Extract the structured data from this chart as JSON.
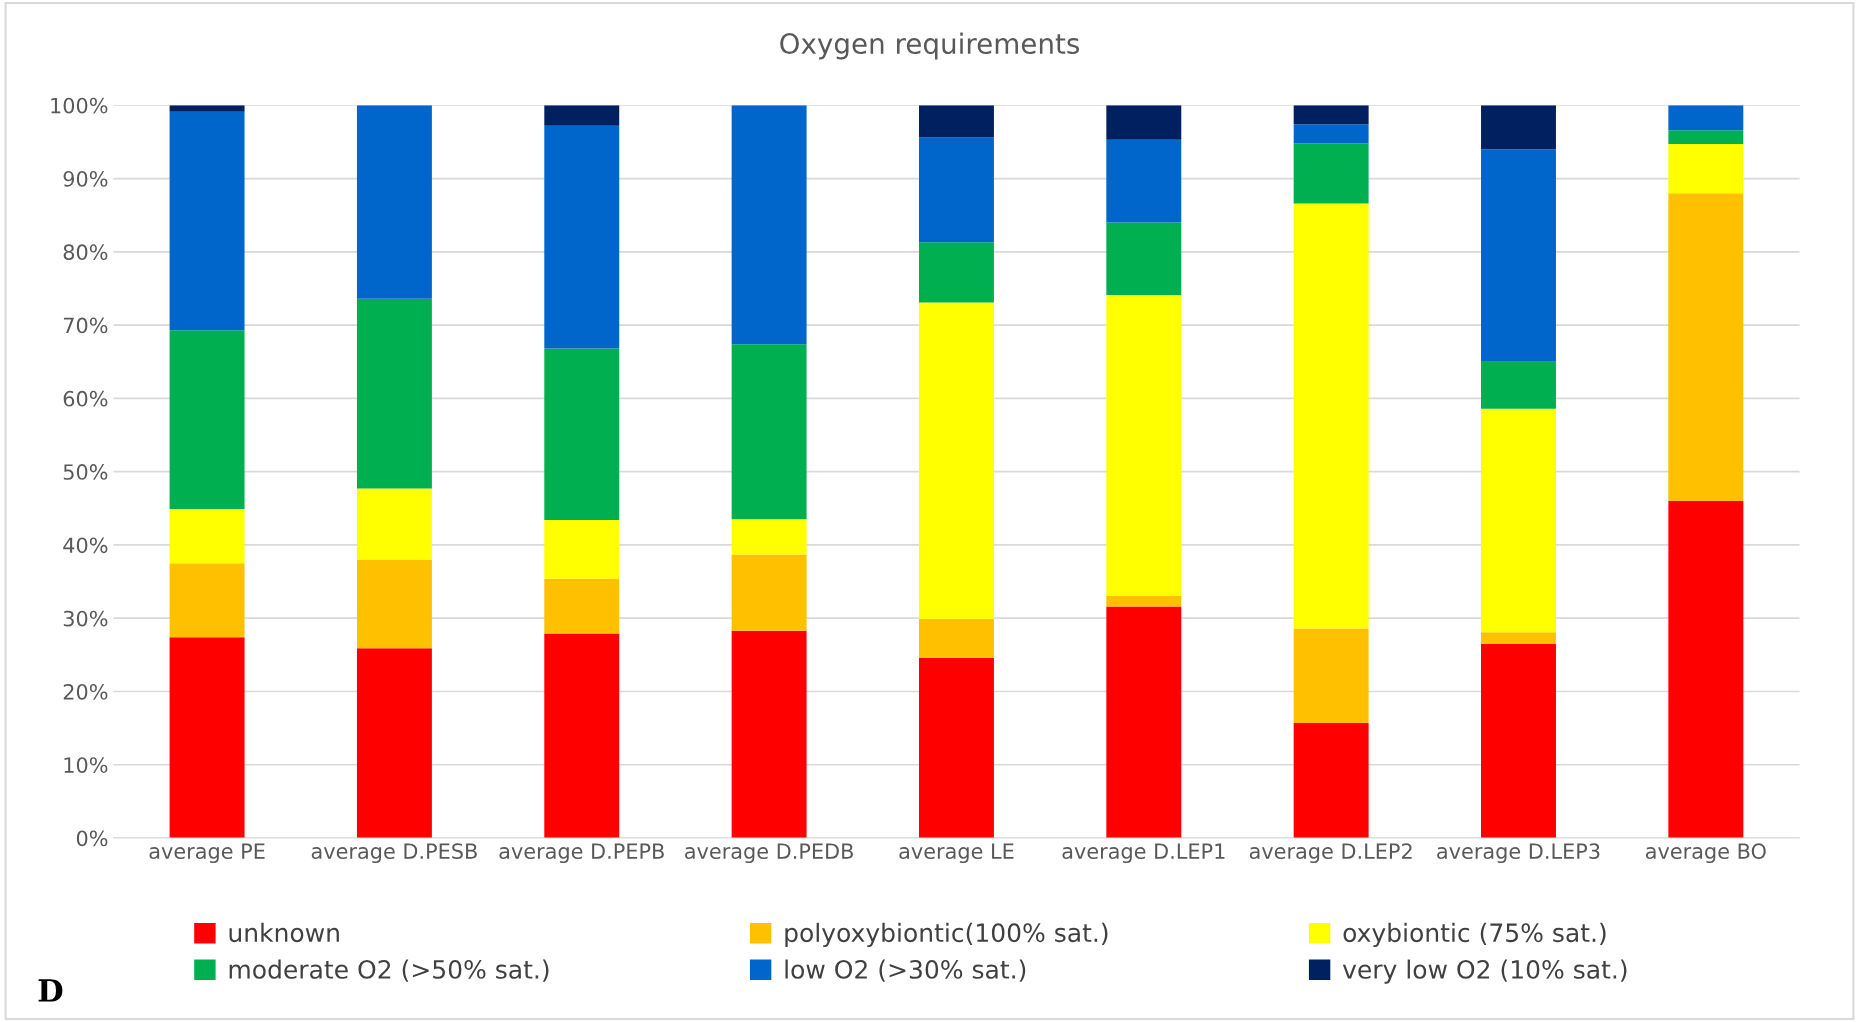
{
  "chart_data": {
    "type": "bar",
    "title": "Oxygen requirements",
    "stacked": true,
    "categories": [
      "average PE",
      "average D.PESB",
      "average D.PEPB",
      "average D.PEDB",
      "average LE",
      "average D.LEP1",
      "average D.LEP2",
      "average D.LEP3",
      "average BO"
    ],
    "series": [
      {
        "name": "unknown",
        "color": "#ff0000",
        "values": [
          27.4,
          25.9,
          27.9,
          28.3,
          24.6,
          31.6,
          15.7,
          26.5,
          46.0
        ]
      },
      {
        "name": "polyoxybiontic(100% sat.)",
        "color": "#ffc000",
        "values": [
          10.1,
          12.1,
          7.5,
          10.4,
          5.3,
          1.5,
          12.9,
          1.6,
          42.0
        ]
      },
      {
        "name": "oxybiontic (75% sat.)",
        "color": "#ffff00",
        "values": [
          7.4,
          9.7,
          8.0,
          4.8,
          43.2,
          41.0,
          58.0,
          30.5,
          6.7
        ]
      },
      {
        "name": "moderate O2 (>50% sat.)",
        "color": "#00b050",
        "values": [
          24.4,
          25.9,
          23.4,
          23.9,
          8.2,
          9.9,
          8.2,
          6.4,
          1.9
        ]
      },
      {
        "name": "low O2 (>30% sat.)",
        "color": "#0066cc",
        "values": [
          29.8,
          26.4,
          30.4,
          32.6,
          14.3,
          11.3,
          2.6,
          29.0,
          3.4
        ]
      },
      {
        "name": "very low O2 (10% sat.)",
        "color": "#002060",
        "values": [
          0.9,
          0,
          2.8,
          0,
          4.4,
          4.7,
          2.6,
          6.0,
          0
        ]
      }
    ],
    "ylim": [
      0,
      100
    ],
    "yticks": [
      {
        "value": 0,
        "label": "0%"
      },
      {
        "value": 10,
        "label": "10%"
      },
      {
        "value": 20,
        "label": "20%"
      },
      {
        "value": 30,
        "label": "30%"
      },
      {
        "value": 40,
        "label": "40%"
      },
      {
        "value": 50,
        "label": "50%"
      },
      {
        "value": 60,
        "label": "60%"
      },
      {
        "value": 70,
        "label": "70%"
      },
      {
        "value": 80,
        "label": "80%"
      },
      {
        "value": 90,
        "label": "90%"
      },
      {
        "value": 100,
        "label": "100%"
      }
    ],
    "grid": "y",
    "legend": "bottom",
    "annotations": [
      "D"
    ]
  }
}
